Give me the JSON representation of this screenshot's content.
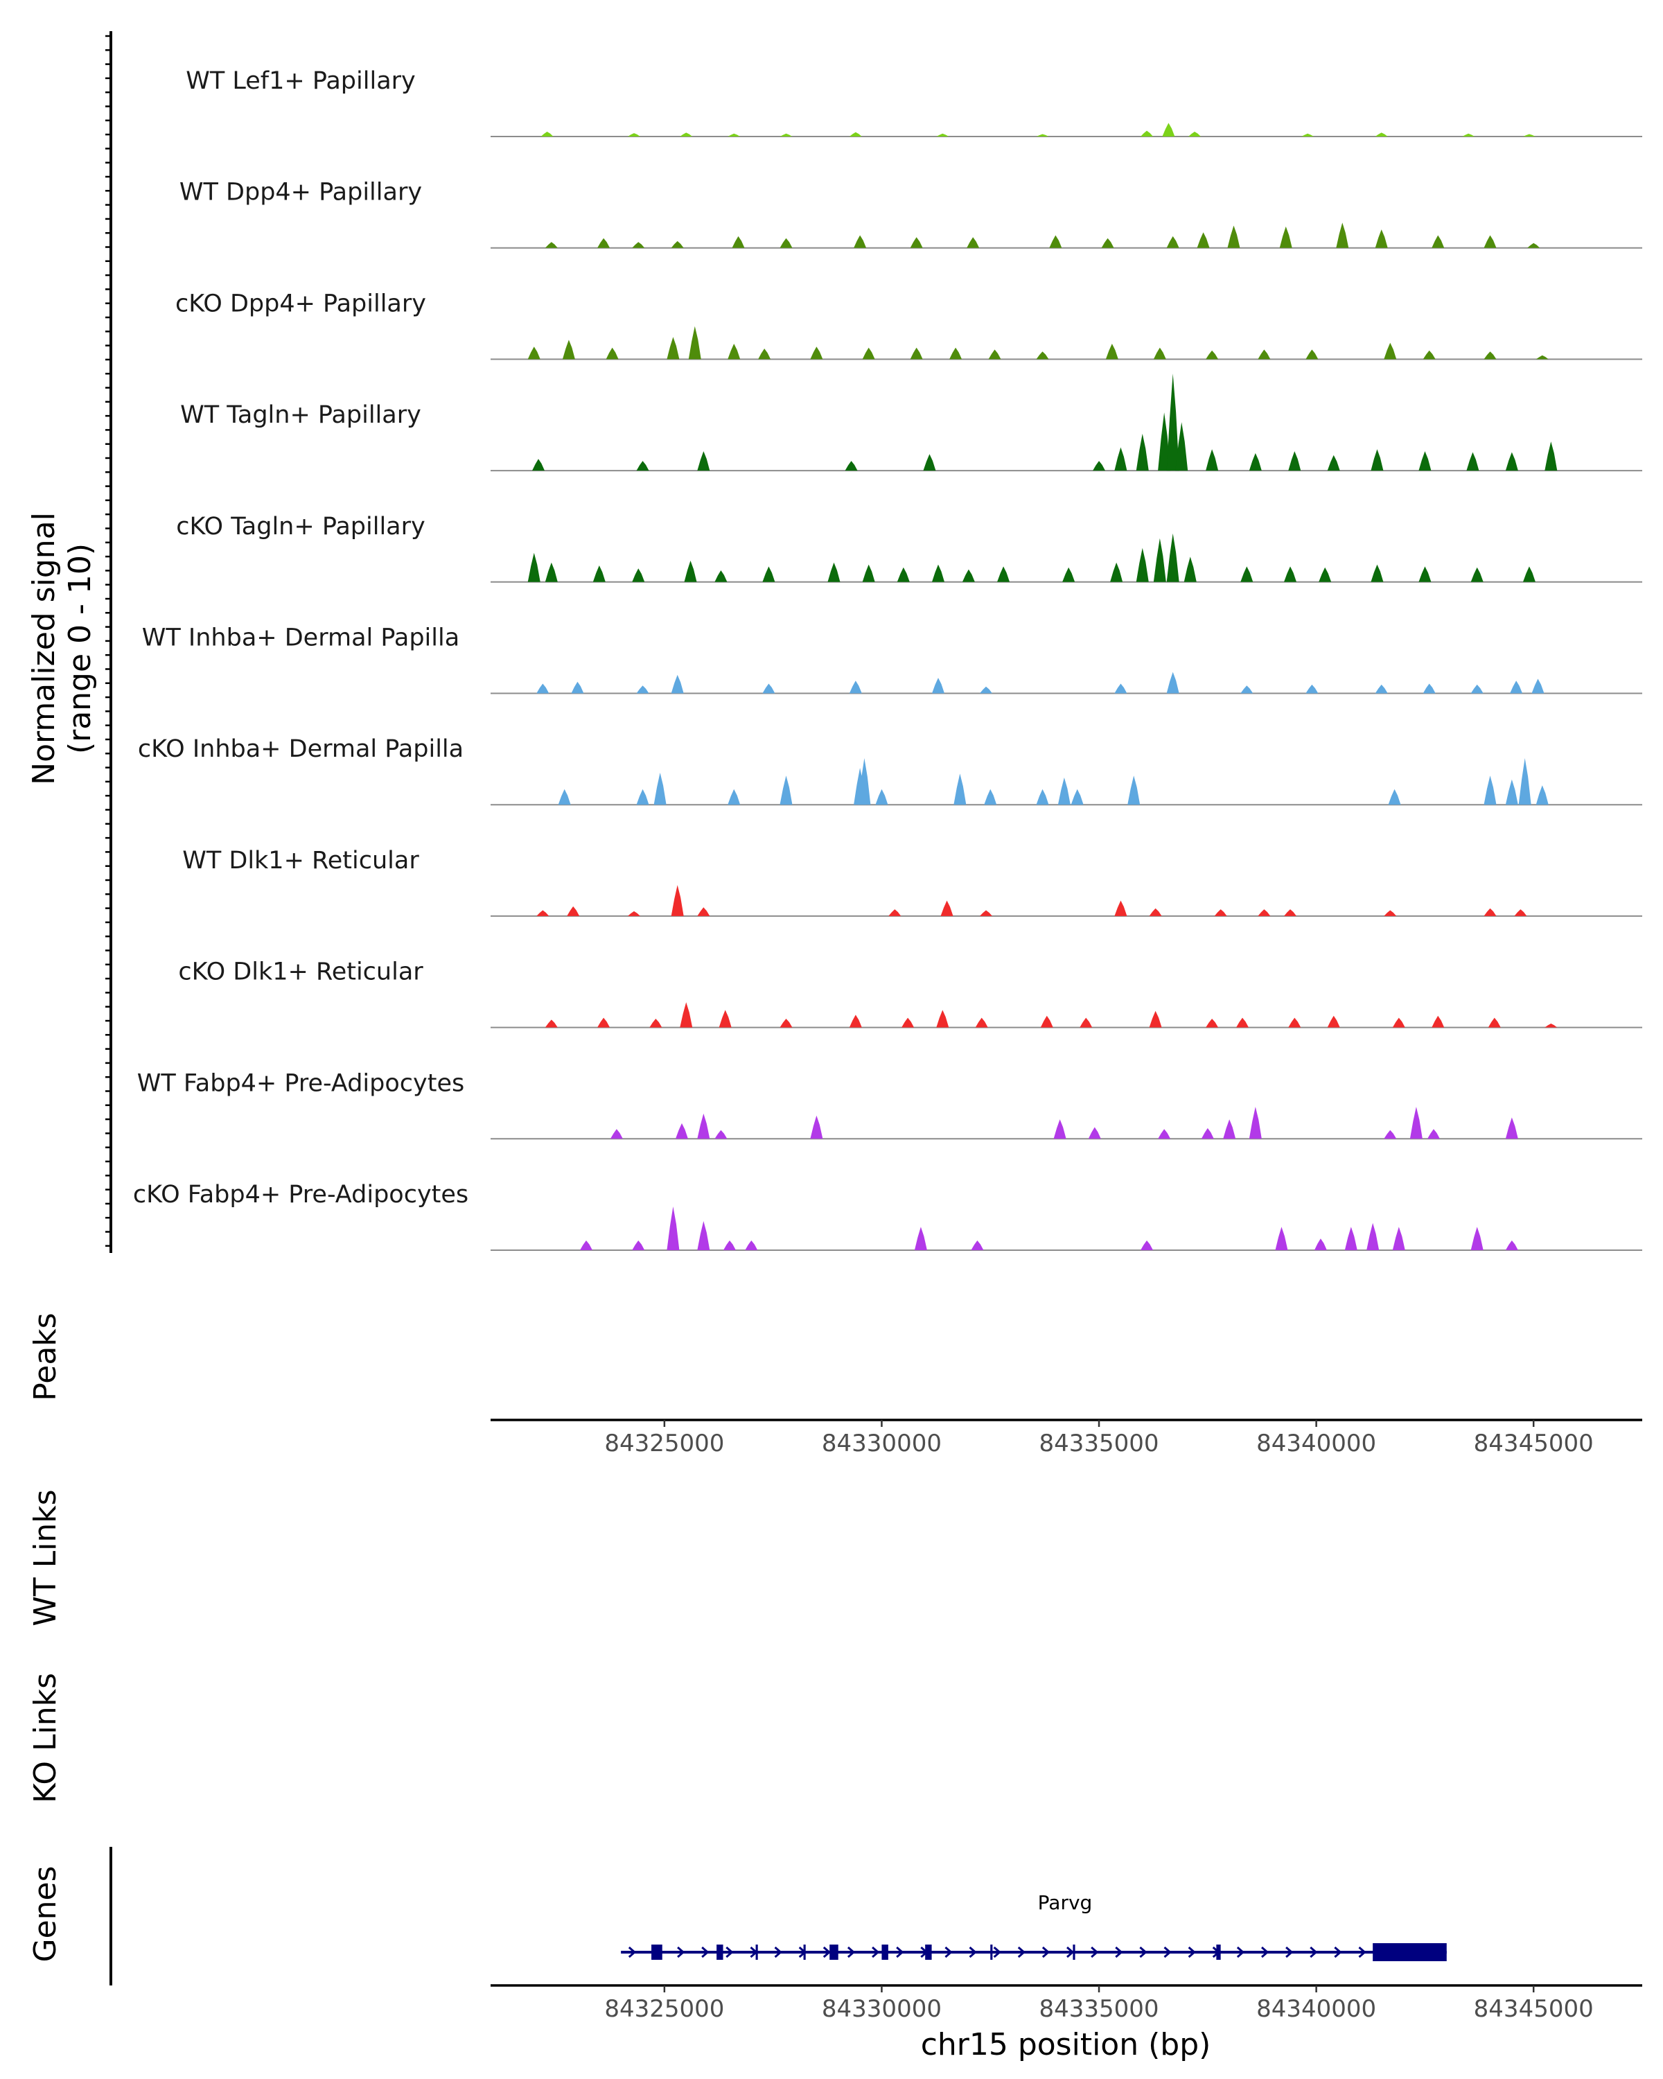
{
  "chart_data": {
    "type": "coverage",
    "chromosome": "chr15",
    "x_range": [
      84321000,
      84347500
    ],
    "xlabel": "chr15 position (bp)",
    "x_ticks": [
      84325000,
      84330000,
      84335000,
      84340000,
      84345000
    ],
    "x_tick_labels": [
      "84325000",
      "84330000",
      "84335000",
      "84340000",
      "84345000"
    ],
    "coverage_ylabel_line1": "Normalized signal",
    "coverage_ylabel_line2": "(range 0 - 10)",
    "y_range": [
      0,
      10
    ],
    "tracks": [
      {
        "name": "WT Lef1+ Papillary",
        "color": "#7cd21a",
        "peaks": [
          [
            84322300,
            0.5
          ],
          [
            84324300,
            0.35
          ],
          [
            84325500,
            0.4
          ],
          [
            84326600,
            0.3
          ],
          [
            84327800,
            0.3
          ],
          [
            84329400,
            0.45
          ],
          [
            84331400,
            0.3
          ],
          [
            84333700,
            0.25
          ],
          [
            84336600,
            1.4
          ],
          [
            84336100,
            0.6
          ],
          [
            84337200,
            0.5
          ],
          [
            84339800,
            0.3
          ],
          [
            84341500,
            0.4
          ],
          [
            84343500,
            0.3
          ],
          [
            84344900,
            0.25
          ]
        ]
      },
      {
        "name": "WT Dpp4+ Papillary",
        "color": "#4f8c0b",
        "peaks": [
          [
            84322400,
            0.6
          ],
          [
            84323600,
            1.0
          ],
          [
            84324400,
            0.6
          ],
          [
            84325300,
            0.7
          ],
          [
            84326700,
            1.2
          ],
          [
            84327800,
            1.0
          ],
          [
            84329500,
            1.3
          ],
          [
            84330800,
            1.1
          ],
          [
            84332100,
            1.1
          ],
          [
            84334000,
            1.3
          ],
          [
            84335200,
            1.0
          ],
          [
            84336700,
            1.2
          ],
          [
            84337400,
            1.6
          ],
          [
            84338100,
            2.3
          ],
          [
            84339300,
            2.2
          ],
          [
            84340600,
            2.6
          ],
          [
            84341500,
            1.9
          ],
          [
            84342800,
            1.3
          ],
          [
            84344000,
            1.3
          ],
          [
            84345000,
            0.5
          ]
        ]
      },
      {
        "name": "cKO Dpp4+ Papillary",
        "color": "#4f8c0b",
        "peaks": [
          [
            84322000,
            1.3
          ],
          [
            84322800,
            2.0
          ],
          [
            84323800,
            1.2
          ],
          [
            84325200,
            2.3
          ],
          [
            84325700,
            3.4
          ],
          [
            84326600,
            1.6
          ],
          [
            84327300,
            1.1
          ],
          [
            84328500,
            1.3
          ],
          [
            84329700,
            1.2
          ],
          [
            84330800,
            1.2
          ],
          [
            84331700,
            1.2
          ],
          [
            84332600,
            1.0
          ],
          [
            84333700,
            0.8
          ],
          [
            84335300,
            1.6
          ],
          [
            84336400,
            1.2
          ],
          [
            84337600,
            0.9
          ],
          [
            84338800,
            1.0
          ],
          [
            84339900,
            1.0
          ],
          [
            84341700,
            1.7
          ],
          [
            84342600,
            0.9
          ],
          [
            84344000,
            0.8
          ],
          [
            84345200,
            0.4
          ]
        ]
      },
      {
        "name": "WT Tagln+ Papillary",
        "color": "#0b6b0b",
        "peaks": [
          [
            84322100,
            1.2
          ],
          [
            84324500,
            1.0
          ],
          [
            84325900,
            2.0
          ],
          [
            84329300,
            1.0
          ],
          [
            84331100,
            1.7
          ],
          [
            84335000,
            1.0
          ],
          [
            84335500,
            2.4
          ],
          [
            84336000,
            3.8
          ],
          [
            84336500,
            6.0
          ],
          [
            84336700,
            10.0
          ],
          [
            84336900,
            5.0
          ],
          [
            84337600,
            2.2
          ],
          [
            84338600,
            1.8
          ],
          [
            84339500,
            2.0
          ],
          [
            84340400,
            1.6
          ],
          [
            84341400,
            2.2
          ],
          [
            84342500,
            2.0
          ],
          [
            84343600,
            1.9
          ],
          [
            84344500,
            1.9
          ],
          [
            84345400,
            3.0
          ]
        ]
      },
      {
        "name": "cKO Tagln+ Papillary",
        "color": "#0b6b0b",
        "peaks": [
          [
            84322000,
            3.0
          ],
          [
            84322400,
            2.0
          ],
          [
            84323500,
            1.7
          ],
          [
            84324400,
            1.4
          ],
          [
            84325600,
            2.2
          ],
          [
            84326300,
            1.2
          ],
          [
            84327400,
            1.6
          ],
          [
            84328900,
            2.0
          ],
          [
            84329700,
            1.8
          ],
          [
            84330500,
            1.5
          ],
          [
            84331300,
            1.8
          ],
          [
            84332000,
            1.3
          ],
          [
            84332800,
            1.6
          ],
          [
            84334300,
            1.5
          ],
          [
            84335400,
            2.0
          ],
          [
            84336000,
            3.5
          ],
          [
            84336400,
            4.5
          ],
          [
            84336700,
            5.0
          ],
          [
            84337100,
            2.6
          ],
          [
            84338400,
            1.6
          ],
          [
            84339400,
            1.6
          ],
          [
            84340200,
            1.5
          ],
          [
            84341400,
            1.8
          ],
          [
            84342500,
            1.6
          ],
          [
            84343700,
            1.5
          ],
          [
            84344900,
            1.6
          ]
        ]
      },
      {
        "name": "WT Inhba+ Dermal Papilla",
        "color": "#5ea8e0",
        "peaks": [
          [
            84322200,
            1.0
          ],
          [
            84323000,
            1.2
          ],
          [
            84324500,
            0.8
          ],
          [
            84325300,
            1.9
          ],
          [
            84327400,
            1.0
          ],
          [
            84329400,
            1.3
          ],
          [
            84331300,
            1.6
          ],
          [
            84332400,
            0.7
          ],
          [
            84335500,
            1.0
          ],
          [
            84336700,
            2.2
          ],
          [
            84338400,
            0.8
          ],
          [
            84339900,
            0.9
          ],
          [
            84341500,
            0.9
          ],
          [
            84342600,
            1.0
          ],
          [
            84343700,
            0.9
          ],
          [
            84344600,
            1.3
          ],
          [
            84345100,
            1.5
          ]
        ]
      },
      {
        "name": "cKO Inhba+ Dermal Papilla",
        "color": "#5ea8e0",
        "peaks": [
          [
            84322700,
            1.6
          ],
          [
            84324500,
            1.6
          ],
          [
            84324900,
            3.3
          ],
          [
            84326600,
            1.6
          ],
          [
            84327800,
            3.0
          ],
          [
            84329600,
            4.8
          ],
          [
            84329500,
            3.8
          ],
          [
            84330000,
            1.6
          ],
          [
            84331800,
            3.2
          ],
          [
            84332500,
            1.6
          ],
          [
            84333700,
            1.6
          ],
          [
            84334200,
            2.8
          ],
          [
            84334500,
            1.6
          ],
          [
            84335800,
            3.0
          ],
          [
            84341800,
            1.6
          ],
          [
            84344000,
            3.0
          ],
          [
            84344500,
            2.6
          ],
          [
            84344800,
            4.8
          ],
          [
            84345200,
            2.0
          ]
        ]
      },
      {
        "name": "WT Dlk1+ Reticular",
        "color": "#f02b2b",
        "peaks": [
          [
            84322200,
            0.6
          ],
          [
            84322900,
            1.0
          ],
          [
            84324300,
            0.5
          ],
          [
            84325300,
            3.2
          ],
          [
            84325900,
            0.9
          ],
          [
            84330300,
            0.7
          ],
          [
            84331500,
            1.6
          ],
          [
            84332400,
            0.6
          ],
          [
            84335500,
            1.6
          ],
          [
            84336300,
            0.8
          ],
          [
            84337800,
            0.7
          ],
          [
            84338800,
            0.7
          ],
          [
            84339400,
            0.7
          ],
          [
            84341700,
            0.6
          ],
          [
            84344000,
            0.8
          ],
          [
            84344700,
            0.7
          ]
        ]
      },
      {
        "name": "cKO Dlk1+ Reticular",
        "color": "#f02b2b",
        "peaks": [
          [
            84322400,
            0.8
          ],
          [
            84323600,
            1.0
          ],
          [
            84324800,
            0.9
          ],
          [
            84325500,
            2.6
          ],
          [
            84326400,
            1.8
          ],
          [
            84327800,
            0.9
          ],
          [
            84329400,
            1.3
          ],
          [
            84330600,
            1.0
          ],
          [
            84331400,
            1.8
          ],
          [
            84332300,
            1.0
          ],
          [
            84333800,
            1.2
          ],
          [
            84334700,
            1.0
          ],
          [
            84336300,
            1.7
          ],
          [
            84337600,
            0.9
          ],
          [
            84338300,
            1.0
          ],
          [
            84339500,
            1.0
          ],
          [
            84340400,
            1.2
          ],
          [
            84341900,
            1.0
          ],
          [
            84342800,
            1.2
          ],
          [
            84344100,
            1.0
          ],
          [
            84345400,
            0.4
          ]
        ]
      },
      {
        "name": "WT Fabp4+ Pre-Adipocytes",
        "color": "#b23ae8",
        "peaks": [
          [
            84323900,
            1.0
          ],
          [
            84325400,
            1.6
          ],
          [
            84325900,
            2.6
          ],
          [
            84326300,
            0.9
          ],
          [
            84328500,
            2.4
          ],
          [
            84334100,
            2.0
          ],
          [
            84334900,
            1.2
          ],
          [
            84336500,
            1.0
          ],
          [
            84337500,
            1.1
          ],
          [
            84338000,
            2.0
          ],
          [
            84338600,
            3.3
          ],
          [
            84341700,
            0.9
          ],
          [
            84342300,
            3.3
          ],
          [
            84342700,
            1.0
          ],
          [
            84344500,
            2.2
          ]
        ]
      },
      {
        "name": "cKO Fabp4+ Pre-Adipocytes",
        "color": "#b23ae8",
        "peaks": [
          [
            84323200,
            1.0
          ],
          [
            84324400,
            1.0
          ],
          [
            84325200,
            4.5
          ],
          [
            84325900,
            3.0
          ],
          [
            84326500,
            1.0
          ],
          [
            84327000,
            1.0
          ],
          [
            84330900,
            2.4
          ],
          [
            84332200,
            1.0
          ],
          [
            84336100,
            1.0
          ],
          [
            84339200,
            2.4
          ],
          [
            84340100,
            1.2
          ],
          [
            84340800,
            2.4
          ],
          [
            84341300,
            2.8
          ],
          [
            84341900,
            2.4
          ],
          [
            84343700,
            2.4
          ],
          [
            84344500,
            1.0
          ]
        ]
      }
    ],
    "peaks_label": "Peaks",
    "wt_links_label": "WT Links",
    "ko_links_label": "KO Links",
    "genes_label": "Genes",
    "gene": {
      "name": "Parvg",
      "start": 84324000,
      "end": 84343000,
      "strand": "+",
      "exons": [
        [
          84324700,
          84324950
        ],
        [
          84326200,
          84326350
        ],
        [
          84327100,
          84327150
        ],
        [
          84328200,
          84328250
        ],
        [
          84328800,
          84329000
        ],
        [
          84330000,
          84330150
        ],
        [
          84331000,
          84331150
        ],
        [
          84332500,
          84332550
        ],
        [
          84334400,
          84334450
        ],
        [
          84337700,
          84337800
        ],
        [
          84341300,
          84343000
        ]
      ]
    }
  }
}
